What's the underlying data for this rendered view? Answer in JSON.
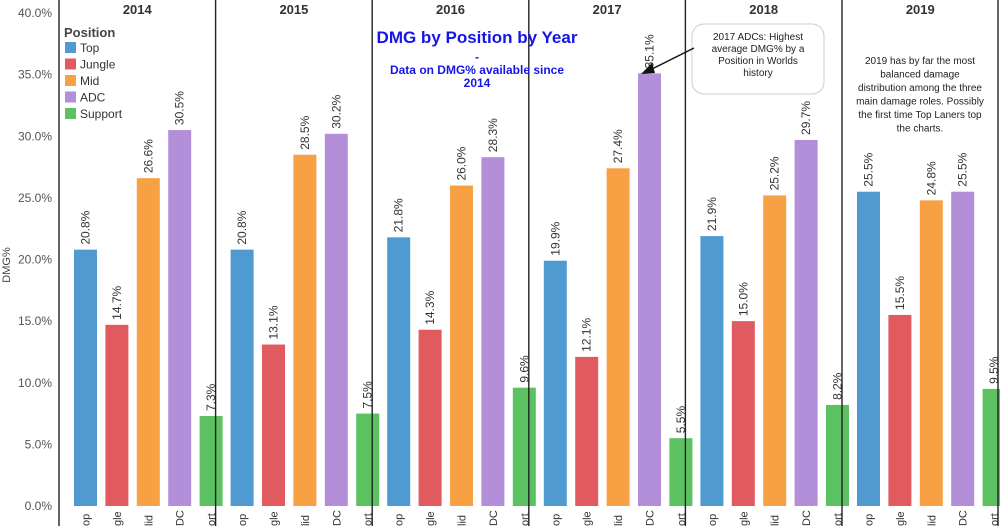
{
  "chart_data": {
    "type": "bar",
    "title": "DMG by Position by Year",
    "subtitle_lines": [
      "-",
      "Data on DMG% available since",
      "2014"
    ],
    "ylabel": "DMG%",
    "ylim": [
      0,
      40
    ],
    "yticks": [
      "0.0%",
      "5.0%",
      "10.0%",
      "15.0%",
      "20.0%",
      "25.0%",
      "30.0%",
      "35.0%",
      "40.0%"
    ],
    "legend": {
      "title": "Position",
      "placement": "top-left",
      "entries": [
        "Top",
        "Jungle",
        "Mid",
        "ADC",
        "Support"
      ]
    },
    "category_tick_labels": [
      "op",
      "gle",
      "lid",
      "DC",
      "ort"
    ],
    "colors": {
      "Top": "#4f9bd1",
      "Jungle": "#e05a5f",
      "Mid": "#f7a144",
      "ADC": "#b28fd8",
      "Support": "#5cc160"
    },
    "panels": [
      {
        "year": "2014",
        "values": [
          20.8,
          14.7,
          26.6,
          30.5,
          7.3
        ],
        "labels": [
          "20.8%",
          "14.7%",
          "26.6%",
          "30.5%",
          "7.3%"
        ]
      },
      {
        "year": "2015",
        "values": [
          20.8,
          13.1,
          28.5,
          30.2,
          7.5
        ],
        "labels": [
          "20.8%",
          "13.1%",
          "28.5%",
          "30.2%",
          "7.5%"
        ]
      },
      {
        "year": "2016",
        "values": [
          21.8,
          14.3,
          26.0,
          28.3,
          9.6
        ],
        "labels": [
          "21.8%",
          "14.3%",
          "26.0%",
          "28.3%",
          "9.6%"
        ]
      },
      {
        "year": "2017",
        "values": [
          19.9,
          12.1,
          27.4,
          35.1,
          5.5
        ],
        "labels": [
          "19.9%",
          "12.1%",
          "27.4%",
          "35.1%",
          "5.5%"
        ]
      },
      {
        "year": "2018",
        "values": [
          21.9,
          15.0,
          25.2,
          29.7,
          8.2
        ],
        "labels": [
          "21.9%",
          "15.0%",
          "25.2%",
          "29.7%",
          "8.2%"
        ]
      },
      {
        "year": "2019",
        "values": [
          25.5,
          15.5,
          24.8,
          25.5,
          9.5
        ],
        "labels": [
          "25.5%",
          "15.5%",
          "24.8%",
          "25.5%",
          "9.5%"
        ]
      }
    ],
    "annotations": [
      {
        "panel": "2017",
        "lines": [
          "2017 ADCs: Highest",
          "average DMG% by a",
          "Position in Worlds",
          "history"
        ]
      },
      {
        "panel": "2019",
        "lines": [
          "2019 has by far the most",
          "balanced damage",
          "distribution among the three",
          "main damage roles. Possibly",
          "the first time Top Laners top",
          "the charts."
        ]
      }
    ],
    "grid": false
  }
}
